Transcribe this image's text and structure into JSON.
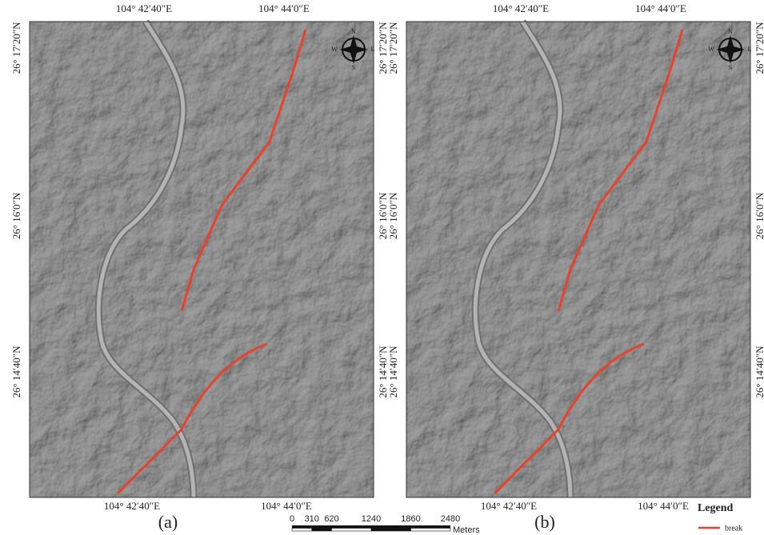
{
  "panels": [
    {
      "label": "(a)"
    },
    {
      "label": "(b)"
    }
  ],
  "longitude_labels": [
    "104° 42′40″E",
    "104° 44′0″E"
  ],
  "latitude_labels": [
    "26° 17′20″N",
    "26° 16′0″N",
    "26° 14′40″N"
  ],
  "compass": {
    "north": "N",
    "south": "S",
    "west": "W",
    "east": "E"
  },
  "scale_bar": {
    "ticks": [
      0,
      310,
      620,
      1240,
      1860,
      2480
    ],
    "unit": "Meters"
  },
  "legend": {
    "title": "Legend",
    "items": [
      {
        "label": "break",
        "color": "#e8432a"
      }
    ]
  }
}
